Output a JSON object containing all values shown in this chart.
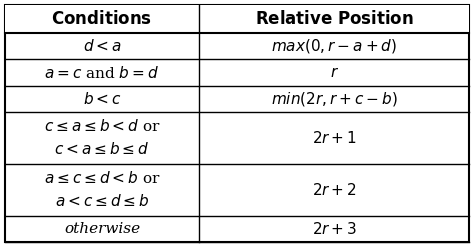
{
  "title_col1": "\\textbf{Conditions}",
  "title_col2": "\\textbf{Relative Position}",
  "rows": [
    {
      "col1": "$d < a$",
      "col2": "$max(0, r - a + d)$",
      "multiline": false
    },
    {
      "col1": "$a = c$ and $b = d$",
      "col2": "$r$",
      "multiline": false
    },
    {
      "col1": "$b < c$",
      "col2": "$min(2r, r + c - b)$",
      "multiline": false
    },
    {
      "col1": "$c \\leq a \\leq b < d$ or\n$c < a \\leq b \\leq d$",
      "col2": "$2r + 1$",
      "multiline": true
    },
    {
      "col1": "$a \\leq c \\leq d < b$ or\n$a < c \\leq d \\leq b$",
      "col2": "$2r + 2$",
      "multiline": true
    },
    {
      "col1": "otherwise",
      "col2": "$2r + 3$",
      "multiline": false
    }
  ],
  "bg_color": "#ffffff",
  "header_bg": "#ffffff",
  "border_color": "#000000",
  "text_color": "#000000",
  "font_size": 11,
  "header_font_size": 12
}
